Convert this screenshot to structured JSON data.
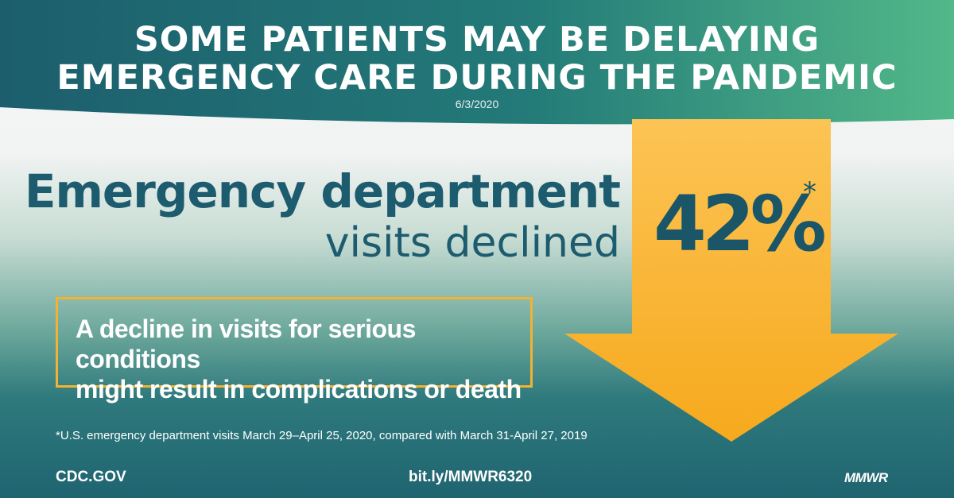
{
  "header": {
    "title_line1": "SOME PATIENTS MAY BE DELAYING",
    "title_line2": "EMERGENCY CARE DURING THE PANDEMIC",
    "date": "6/3/2020"
  },
  "headline": {
    "line1": "Emergency department",
    "line2": "visits declined"
  },
  "stat": {
    "value": "42%",
    "footnote_marker": "*"
  },
  "callout": {
    "line1": "A decline in visits for serious conditions",
    "line2": "might result in complications or death"
  },
  "footnote": "*U.S. emergency department visits March 29–April 25, 2020, compared with March 31-April 27, 2019",
  "footer": {
    "source": "CDC.GOV",
    "link": "bit.ly/MMWR6320",
    "logo": "MMWR"
  },
  "colors": {
    "header_dark": "#1c5e6d",
    "header_light": "#52b889",
    "arrow": "#f8b22e",
    "headline_text": "#1d5b6e",
    "callout_border": "#f2b233"
  },
  "icons": {
    "down_arrow": "down-arrow-icon"
  }
}
